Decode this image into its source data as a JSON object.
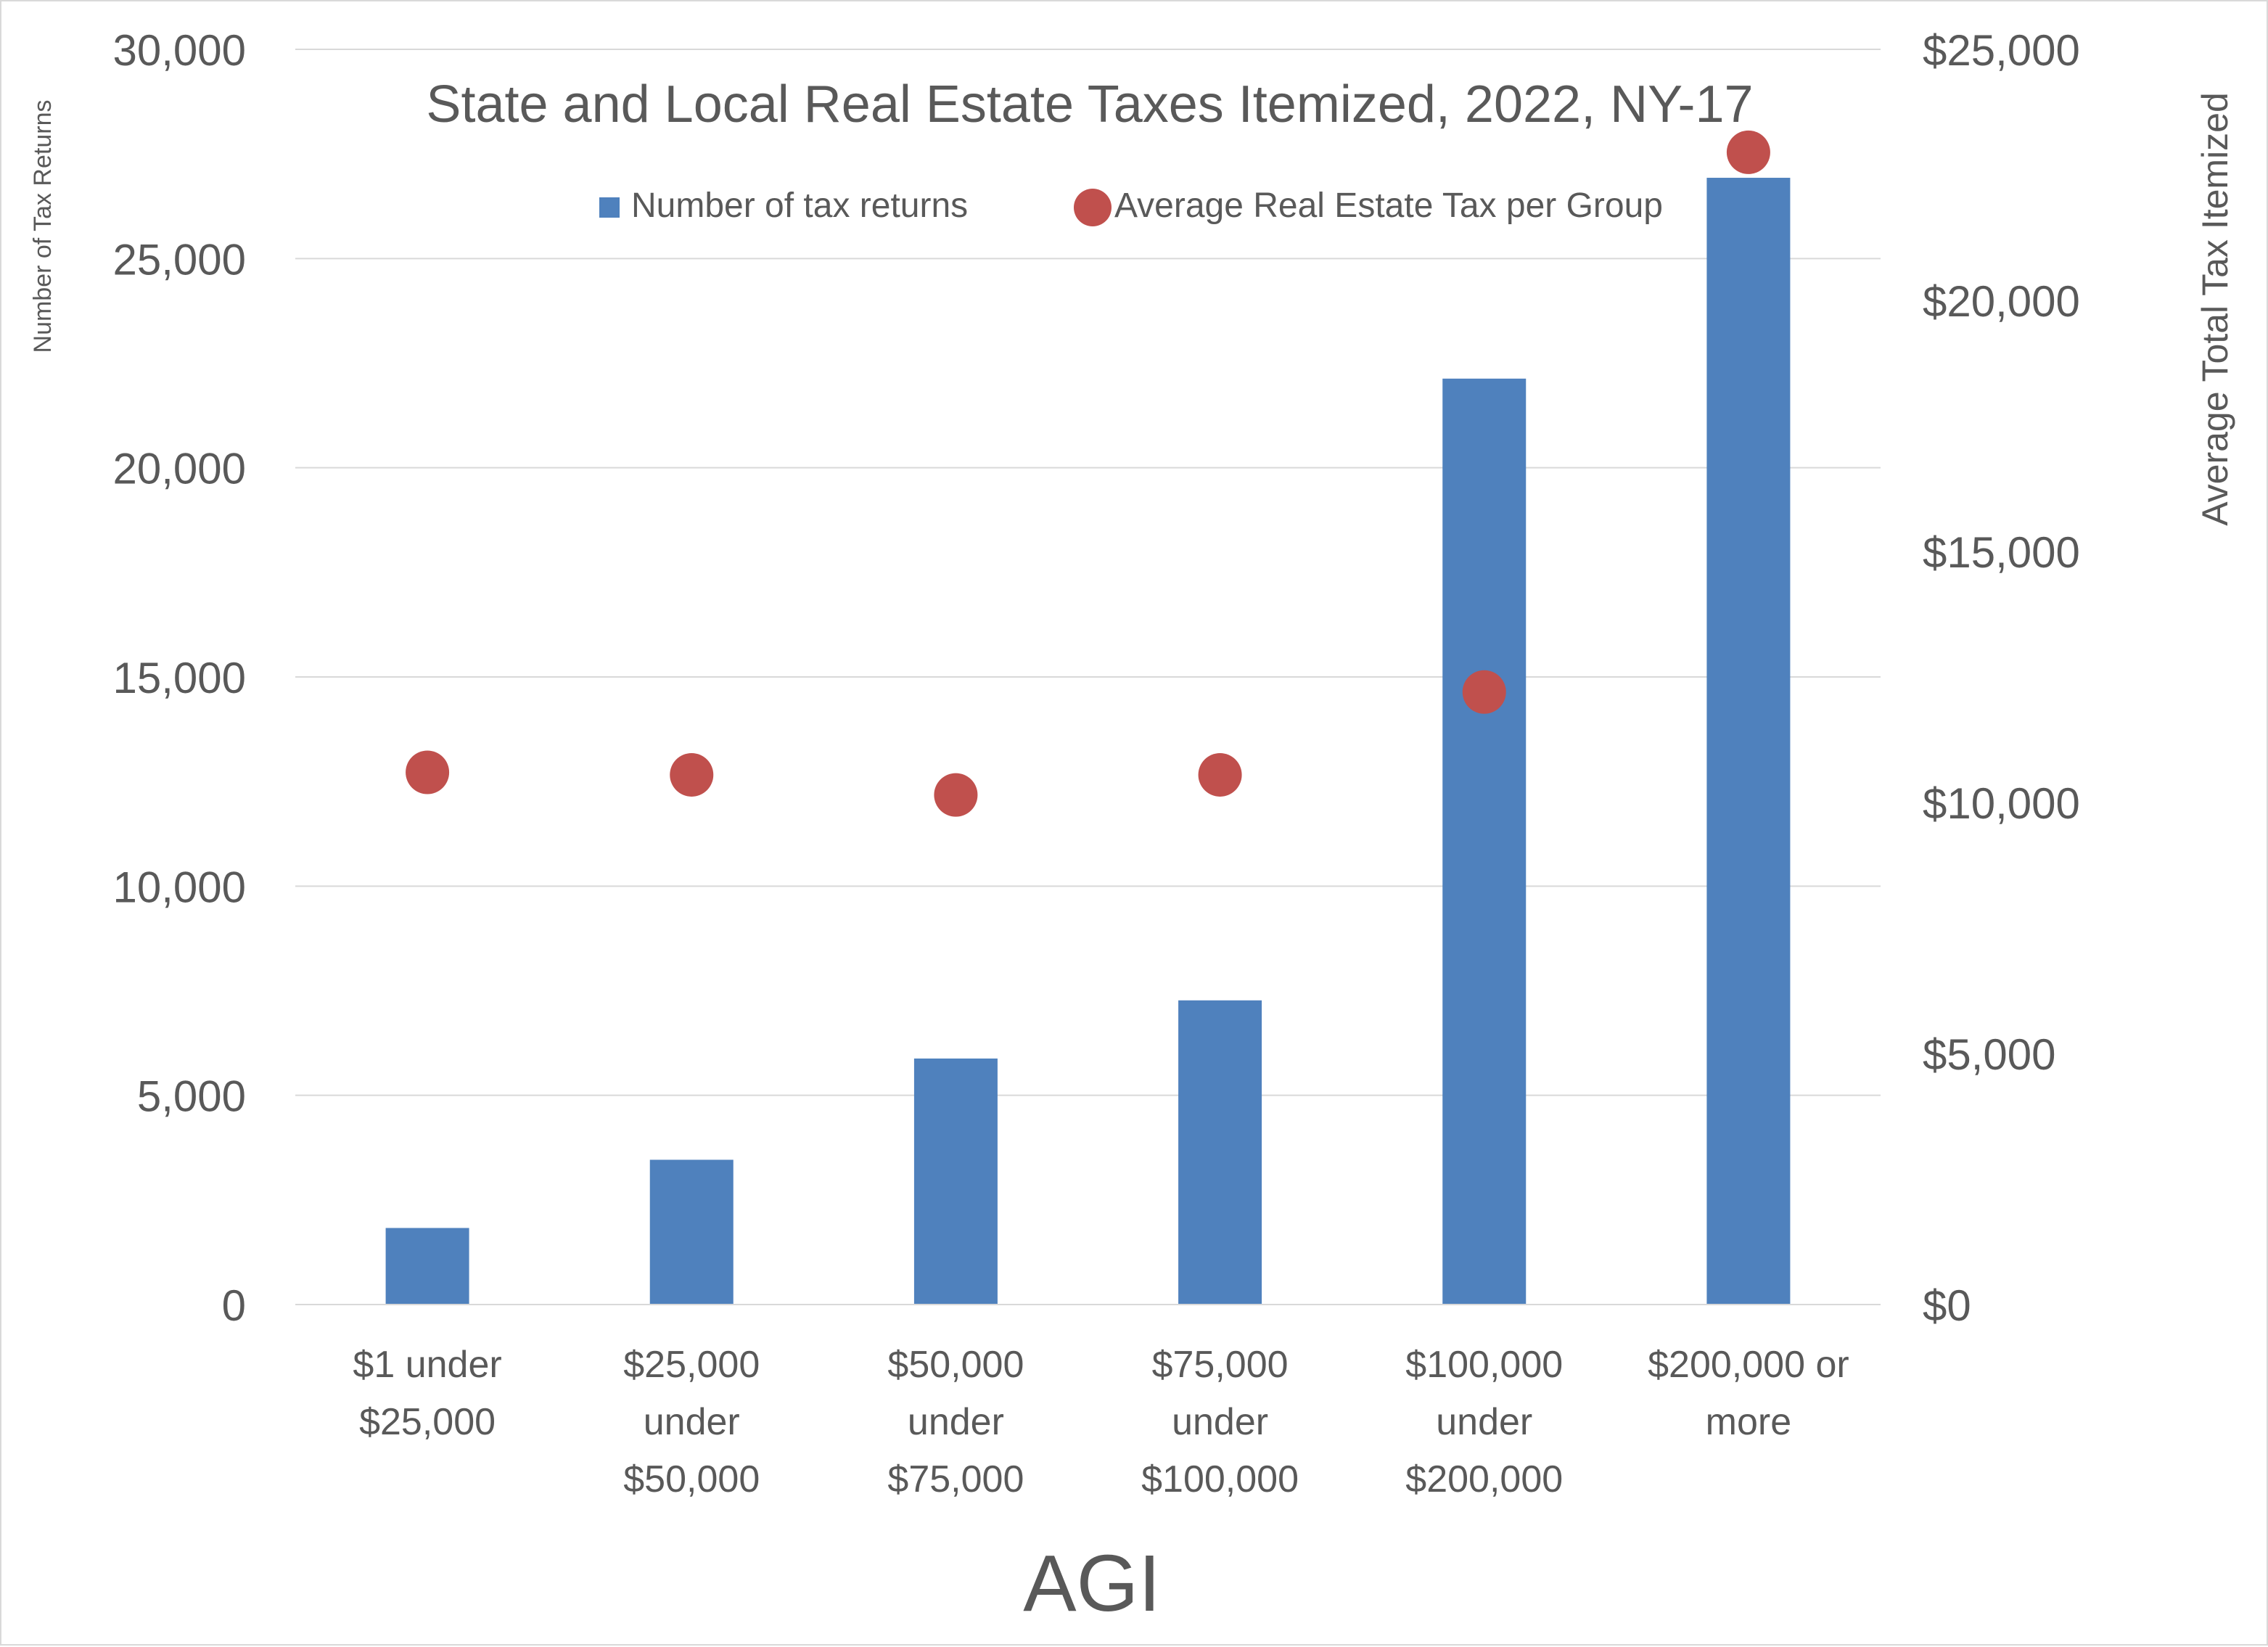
{
  "chart_data": {
    "type": "bar",
    "title": "State and Local Real Estate Taxes Itemized, 2022, NY-17",
    "xlabel": "AGI",
    "ylabel": "Number of Tax Returns",
    "y2label": "Average Total Tax Itemized",
    "categories": [
      [
        "$1 under",
        "$25,000"
      ],
      [
        "$25,000",
        "under",
        "$50,000"
      ],
      [
        "$50,000",
        "under",
        "$75,000"
      ],
      [
        "$75,000",
        "under",
        "$100,000"
      ],
      [
        "$100,000",
        "under",
        "$200,000"
      ],
      [
        "$200,000 or",
        "more"
      ]
    ],
    "series": [
      {
        "name": "Number of tax returns",
        "type": "bar",
        "axis": "left",
        "color": "#4f81bd",
        "values": [
          1830,
          3460,
          5880,
          7270,
          22130,
          26930
        ]
      },
      {
        "name": "Average Real Estate Tax per Group",
        "type": "scatter",
        "axis": "right",
        "color": "#c0504d",
        "values": [
          10600,
          10550,
          10150,
          10550,
          12200,
          22950
        ]
      }
    ],
    "ylim": [
      0,
      30000
    ],
    "y_ticks": [
      0,
      5000,
      10000,
      15000,
      20000,
      25000,
      30000
    ],
    "y_tick_labels": [
      "0",
      "5,000",
      "10,000",
      "15,000",
      "20,000",
      "25,000",
      "30,000"
    ],
    "y2lim": [
      0,
      25000
    ],
    "y2_ticks": [
      0,
      5000,
      10000,
      15000,
      20000,
      25000
    ],
    "y2_tick_labels": [
      "$0",
      "$5,000",
      "$10,000",
      "$15,000",
      "$20,000",
      "$25,000"
    ],
    "grid": true,
    "legend_position": "top-center"
  }
}
